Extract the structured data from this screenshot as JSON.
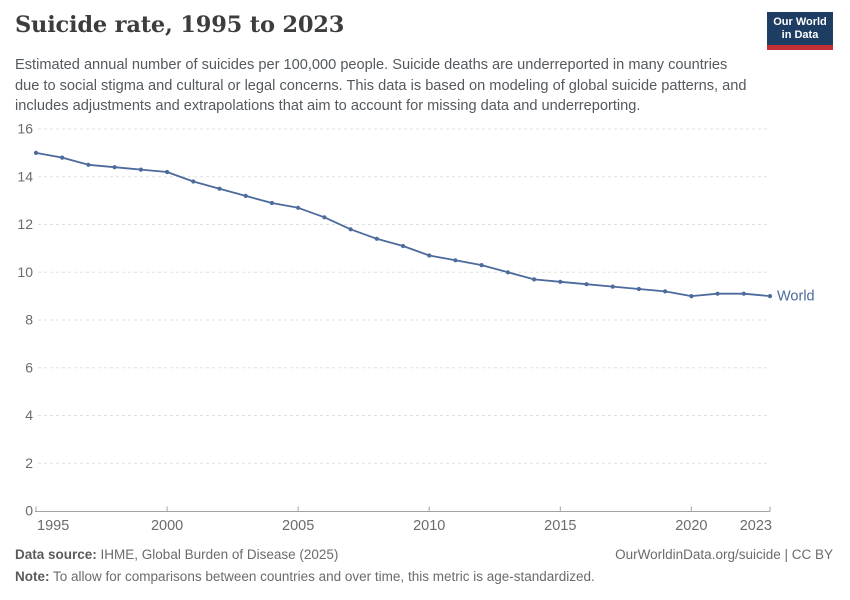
{
  "header": {
    "title": "Suicide rate, 1995 to 2023"
  },
  "subtitle_lines": [
    "Estimated annual number of suicides per 100,000 people. Suicide deaths are underreported in many countries",
    "due to social stigma and cultural or legal concerns. This data is based on modeling of global suicide patterns, and",
    "includes adjustments and extrapolations that aim to account for missing data and underreporting."
  ],
  "logo": {
    "line1": "Our World",
    "line2": "in Data",
    "bg_color": "#1d3d63",
    "accent_color": "#c22f35"
  },
  "chart_data": {
    "type": "line",
    "title": "Suicide rate, 1995 to 2023",
    "xlabel": "",
    "ylabel": "",
    "x": [
      1995,
      1996,
      1997,
      1998,
      1999,
      2000,
      2001,
      2002,
      2003,
      2004,
      2005,
      2006,
      2007,
      2008,
      2009,
      2010,
      2011,
      2012,
      2013,
      2014,
      2015,
      2016,
      2017,
      2018,
      2019,
      2020,
      2021,
      2022,
      2023
    ],
    "series": [
      {
        "name": "World",
        "color": "#4C6A9C",
        "values": [
          15.0,
          14.8,
          14.5,
          14.4,
          14.3,
          14.2,
          13.8,
          13.5,
          13.2,
          12.9,
          12.7,
          12.3,
          11.8,
          11.4,
          11.1,
          10.7,
          10.5,
          10.3,
          10.0,
          9.7,
          9.6,
          9.5,
          9.4,
          9.3,
          9.2,
          9.0,
          9.1,
          9.1,
          9.0
        ]
      }
    ],
    "ylim": [
      0,
      16
    ],
    "yticks": [
      0,
      2,
      4,
      6,
      8,
      10,
      12,
      14,
      16
    ],
    "xticks": [
      1995,
      2000,
      2005,
      2010,
      2015,
      2020,
      2023
    ],
    "grid": true,
    "legend_position": "end-of-line",
    "end_label": "World",
    "grid_color": "#e0e0e0",
    "axis_color": "#a3a3a3",
    "tick_label_color": "#6b6b6b"
  },
  "footer": {
    "source_label": "Data source:",
    "source_text": "IHME, Global Burden of Disease (2025)",
    "link": "OurWorldinData.org/suicide | CC BY",
    "note_label": "Note:",
    "note_text": "To allow for comparisons between countries and over time, this metric is age-standardized."
  }
}
